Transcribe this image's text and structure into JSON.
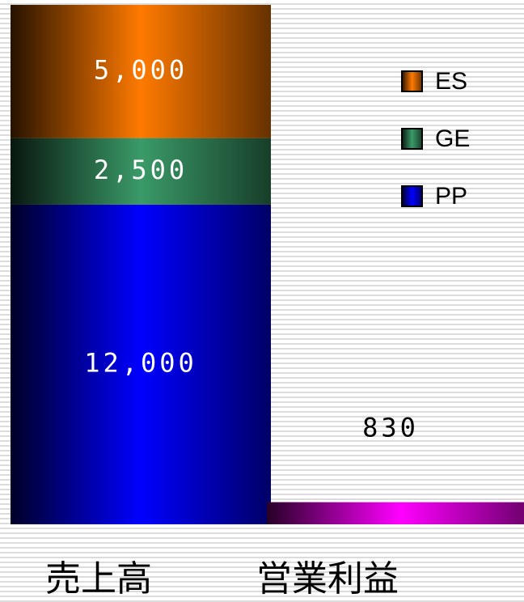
{
  "chart_data": {
    "type": "stacked_bar",
    "categories": [
      "売上高",
      "営業利益"
    ],
    "ylim": [
      0,
      19500
    ],
    "series": [
      {
        "name": "ES",
        "color": "#ff7a00",
        "values": [
          5000,
          null
        ],
        "value_labels": [
          "5,000",
          null
        ]
      },
      {
        "name": "GE",
        "color": "#3a9a68",
        "values": [
          2500,
          null
        ],
        "value_labels": [
          "2,500",
          null
        ]
      },
      {
        "name": "PP",
        "color": "#0000ff",
        "values": [
          12000,
          null
        ],
        "value_labels": [
          "12,000",
          null
        ]
      },
      {
        "color": "#ff00ff",
        "values": [
          null,
          830
        ]
      }
    ]
  }
}
